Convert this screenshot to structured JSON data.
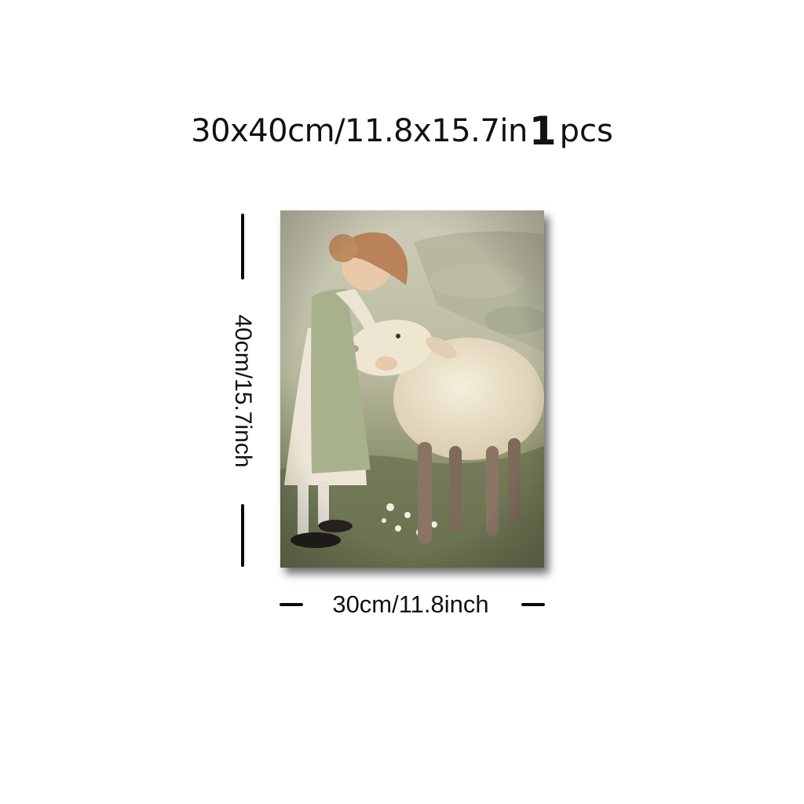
{
  "header": {
    "size_text": "30x40cm/11.8x15.7in",
    "quantity_number": "1",
    "quantity_unit": "pcs"
  },
  "dimensions": {
    "height_label": "40cm/15.7inch",
    "width_label": "30cm/11.8inch",
    "line_color": "#0a0a0a"
  },
  "artwork": {
    "subject_icon": "girl-with-lamb-painting",
    "palette": {
      "background": "#c9c6ad",
      "grass": "#7d8560",
      "dress": "#b8c29e",
      "sheep": "#eee4cc",
      "hair": "#b9825a"
    }
  }
}
